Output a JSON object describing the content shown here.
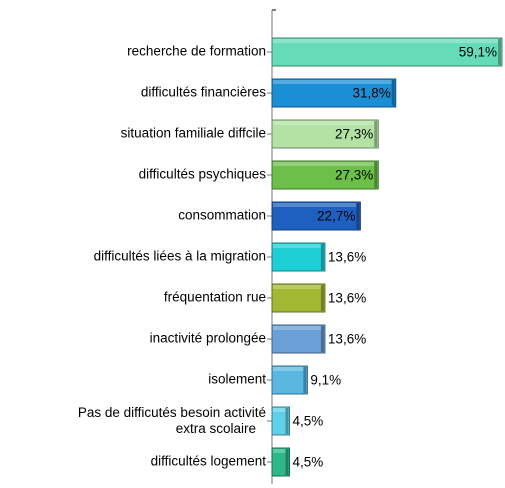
{
  "chart_data": {
    "type": "bar",
    "orientation": "horizontal",
    "categories": [
      "recherche de formation",
      "difficultés financières",
      "situation familiale diffcile",
      "difficultés psychiques",
      "consommation",
      "difficultés liées à la migration",
      "fréquentation rue",
      "inactivité prolongée",
      "isolement",
      "Pas de difficutés besoin activité\nextra scolaire",
      "difficultés logement"
    ],
    "values": [
      59.1,
      31.8,
      27.3,
      27.3,
      22.7,
      13.6,
      13.6,
      13.6,
      9.1,
      4.5,
      4.5
    ],
    "value_labels": [
      "59,1%",
      "31,8%",
      "27,3%",
      "27,3%",
      "22,7%",
      "13,6%",
      "13,6%",
      "13,6%",
      "9,1%",
      "4,5%",
      "4,5%"
    ],
    "colors": [
      "#66dbb8",
      "#1a8fd6",
      "#b3e2a4",
      "#6cc04a",
      "#1f5fc0",
      "#1fcfd6",
      "#a3b832",
      "#6a9fd8",
      "#5ab8e0",
      "#5fd0e8",
      "#2db88a"
    ]
  }
}
